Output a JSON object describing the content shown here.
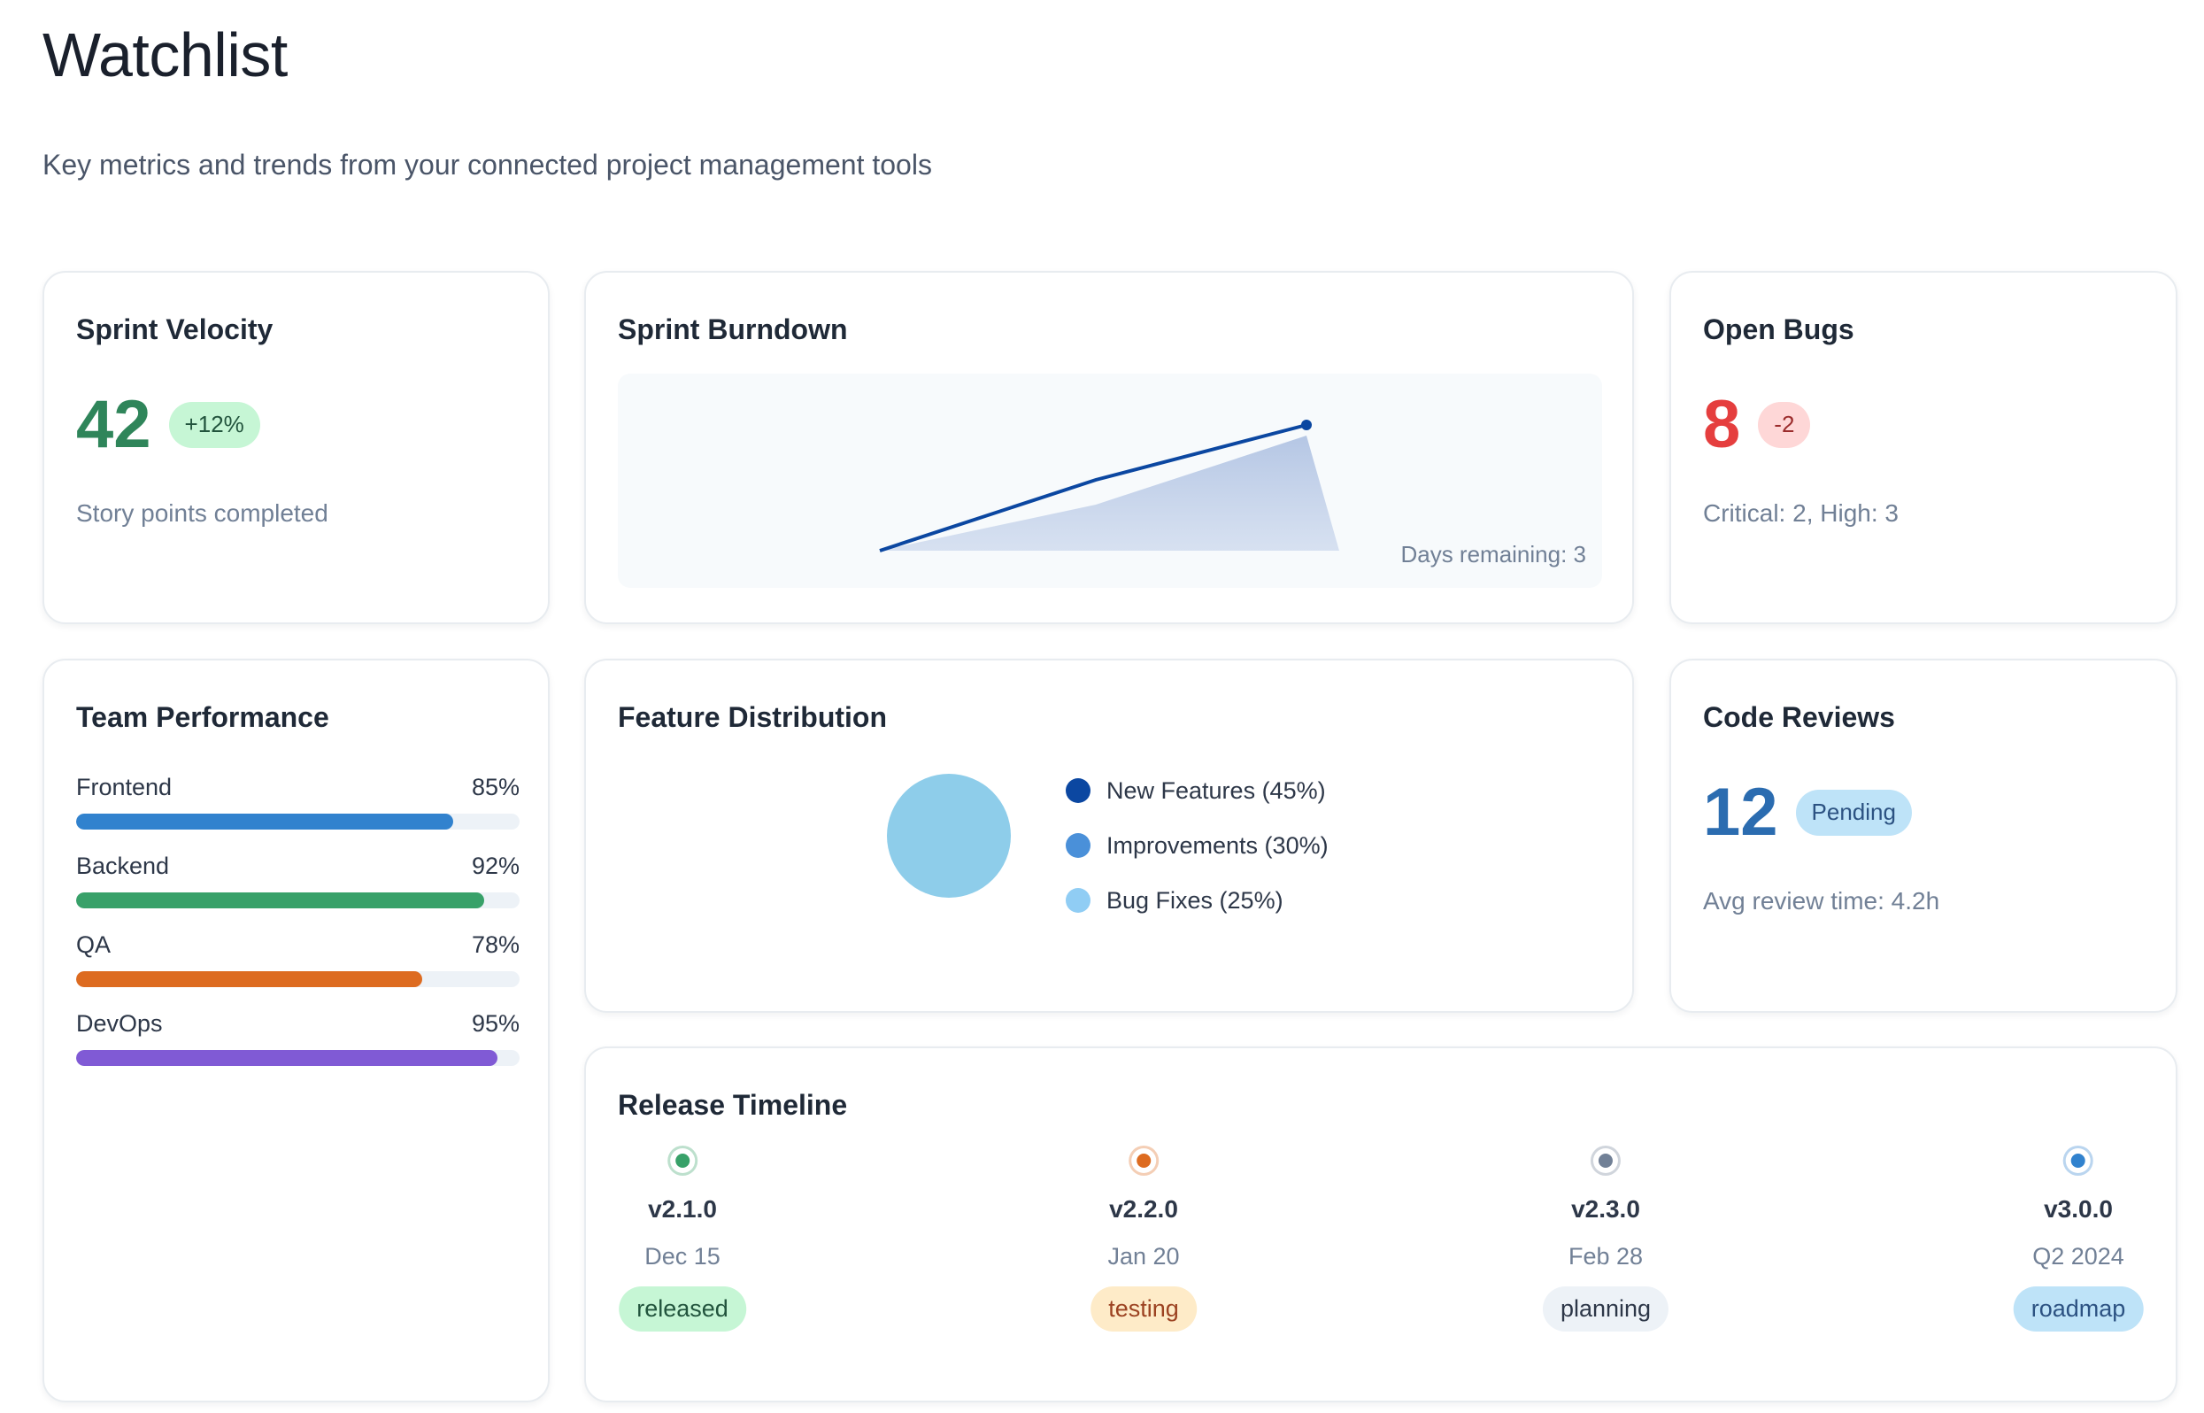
{
  "page": {
    "title": "Watchlist",
    "subtitle": "Key metrics and trends from your connected project management tools"
  },
  "velocity": {
    "title": "Sprint Velocity",
    "value": "42",
    "change": "+12%",
    "caption": "Story points completed"
  },
  "burndown": {
    "title": "Sprint Burndown",
    "days_remaining": "Days remaining: 3"
  },
  "bugs": {
    "title": "Open Bugs",
    "value": "8",
    "change": "-2",
    "caption": "Critical: 2, High: 3"
  },
  "team": {
    "title": "Team Performance",
    "items": [
      {
        "label": "Frontend",
        "value": "85%",
        "percent": 85,
        "color": "#3182ce"
      },
      {
        "label": "Backend",
        "value": "92%",
        "percent": 92,
        "color": "#38a169"
      },
      {
        "label": "QA",
        "value": "78%",
        "percent": 78,
        "color": "#dd6b20"
      },
      {
        "label": "DevOps",
        "value": "95%",
        "percent": 95,
        "color": "#805ad5"
      }
    ]
  },
  "features": {
    "title": "Feature Distribution",
    "legend": [
      {
        "label": "New Features (45%)",
        "color": "#0b47a1"
      },
      {
        "label": "Improvements (30%)",
        "color": "#4a90d9"
      },
      {
        "label": "Bug Fixes (25%)",
        "color": "#90cdf4"
      }
    ],
    "pie_color": "#8ecdea"
  },
  "reviews": {
    "title": "Code Reviews",
    "value": "12",
    "status": "Pending",
    "caption": "Avg review time: 4.2h"
  },
  "releases": {
    "title": "Release Timeline",
    "items": [
      {
        "version": "v2.1.0",
        "date": "Dec 15",
        "status": "released",
        "color": "#38a169",
        "badge_bg": "#c6f6d5",
        "badge_fg": "#22543d"
      },
      {
        "version": "v2.2.0",
        "date": "Jan 20",
        "status": "testing",
        "color": "#dd6b20",
        "badge_bg": "#feebc8",
        "badge_fg": "#9c4221"
      },
      {
        "version": "v2.3.0",
        "date": "Feb 28",
        "status": "planning",
        "color": "#718096",
        "badge_bg": "#edf2f7",
        "badge_fg": "#2d3748"
      },
      {
        "version": "v3.0.0",
        "date": "Q2 2024",
        "status": "roadmap",
        "color": "#3182ce",
        "badge_bg": "#bee3f8",
        "badge_fg": "#2c5282"
      }
    ]
  }
}
